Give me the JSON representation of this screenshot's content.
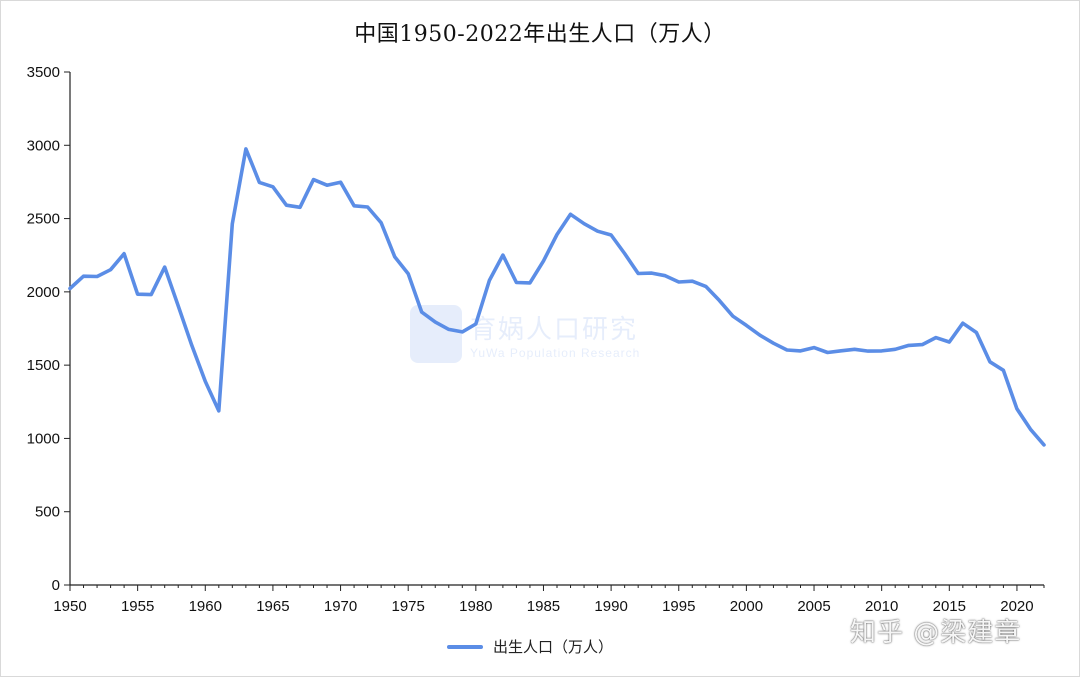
{
  "chart_data": {
    "type": "line",
    "title": "中国1950-2022年出生人口（万人）",
    "xlabel": "",
    "ylabel": "",
    "xlim": [
      1950,
      2022
    ],
    "ylim": [
      0,
      3500
    ],
    "y_ticks": [
      0,
      500,
      1000,
      1500,
      2000,
      2500,
      3000,
      3500
    ],
    "x_ticks": [
      1950,
      1955,
      1960,
      1965,
      1970,
      1975,
      1980,
      1985,
      1990,
      1995,
      2000,
      2005,
      2010,
      2015,
      2020
    ],
    "grid": false,
    "legend_position": "bottom",
    "series": [
      {
        "name": "出生人口（万人）",
        "color": "#5b8de6",
        "x": [
          1950,
          1951,
          1952,
          1953,
          1954,
          1955,
          1956,
          1957,
          1958,
          1959,
          1960,
          1961,
          1962,
          1963,
          1964,
          1965,
          1966,
          1967,
          1968,
          1969,
          1970,
          1971,
          1972,
          1973,
          1974,
          1975,
          1976,
          1977,
          1978,
          1979,
          1980,
          1981,
          1982,
          1983,
          1984,
          1985,
          1986,
          1987,
          1988,
          1989,
          1990,
          1991,
          1992,
          1993,
          1994,
          1995,
          1996,
          1997,
          1998,
          1999,
          2000,
          2001,
          2002,
          2003,
          2004,
          2005,
          2006,
          2007,
          2008,
          2009,
          2010,
          2011,
          2012,
          2013,
          2014,
          2015,
          2016,
          2017,
          2018,
          2019,
          2020,
          2021,
          2022
        ],
        "values": [
          2023,
          2107,
          2105,
          2151,
          2260,
          1984,
          1981,
          2169,
          1905,
          1635,
          1389,
          1188,
          2464,
          2975,
          2747,
          2717,
          2591,
          2577,
          2766,
          2728,
          2748,
          2587,
          2579,
          2472,
          2240,
          2124,
          1862,
          1794,
          1744,
          1727,
          1781,
          2078,
          2251,
          2064,
          2061,
          2211,
          2391,
          2529,
          2465,
          2414,
          2388,
          2262,
          2125,
          2128,
          2110,
          2067,
          2073,
          2037,
          1942,
          1834,
          1771,
          1704,
          1650,
          1603,
          1597,
          1620,
          1586,
          1598,
          1608,
          1596,
          1597,
          1608,
          1635,
          1640,
          1688,
          1658,
          1786,
          1723,
          1523,
          1465,
          1202,
          1062,
          956
        ]
      }
    ]
  },
  "watermark_text": "知乎 @梁建章",
  "faint_logo": {
    "cn": "育娲人口研究",
    "en": "YuWa Population Research"
  }
}
